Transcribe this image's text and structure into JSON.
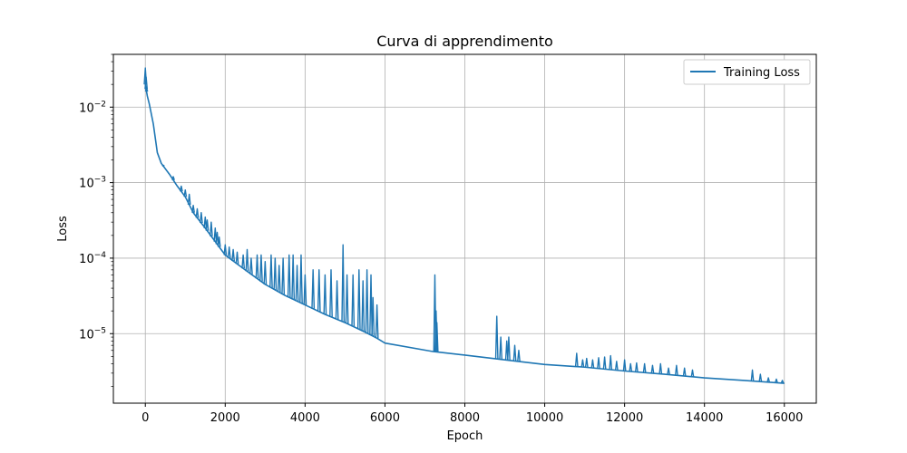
{
  "chart_data": {
    "type": "line",
    "title": "Curva di apprendimento",
    "xlabel": "Epoch",
    "ylabel": "Loss",
    "xlim": [
      -800,
      16800
    ],
    "ylim": [
      1.2e-06,
      0.05
    ],
    "yscale": "log",
    "grid": true,
    "legend_position": "upper right",
    "x_ticks": [
      "0",
      "2000",
      "4000",
      "6000",
      "8000",
      "10000",
      "12000",
      "14000",
      "16000"
    ],
    "x_tick_values": [
      0,
      2000,
      4000,
      6000,
      8000,
      10000,
      12000,
      14000,
      16000
    ],
    "y_ticks": [
      {
        "base": "10",
        "exp": "−5",
        "value": 1e-05
      },
      {
        "base": "10",
        "exp": "−4",
        "value": 0.0001
      },
      {
        "base": "10",
        "exp": "−3",
        "value": 0.001
      },
      {
        "base": "10",
        "exp": "−2",
        "value": 0.01
      }
    ],
    "series": [
      {
        "name": "Training Loss",
        "color": "#1f77b4",
        "baseline": [
          [
            0,
            0.02
          ],
          [
            50,
            0.014
          ],
          [
            100,
            0.011
          ],
          [
            200,
            0.006
          ],
          [
            300,
            0.0025
          ],
          [
            400,
            0.0018
          ],
          [
            600,
            0.0013
          ],
          [
            800,
            0.0009
          ],
          [
            1000,
            0.00065
          ],
          [
            1200,
            0.0004
          ],
          [
            1500,
            0.00025
          ],
          [
            2000,
            0.00011
          ],
          [
            2500,
            7e-05
          ],
          [
            3000,
            4.5e-05
          ],
          [
            3500,
            3.2e-05
          ],
          [
            4000,
            2.4e-05
          ],
          [
            4500,
            1.8e-05
          ],
          [
            5000,
            1.4e-05
          ],
          [
            5500,
            1.05e-05
          ],
          [
            5800,
            8.7e-06
          ],
          [
            6000,
            7.5e-06
          ],
          [
            7200,
            5.8e-06
          ],
          [
            8000,
            5.2e-06
          ],
          [
            9000,
            4.5e-06
          ],
          [
            10000,
            3.9e-06
          ],
          [
            11000,
            3.6e-06
          ],
          [
            12000,
            3.2e-06
          ],
          [
            13000,
            2.9e-06
          ],
          [
            14000,
            2.6e-06
          ],
          [
            15000,
            2.4e-06
          ],
          [
            16000,
            2.2e-06
          ]
        ],
        "spikes": [
          [
            0,
            0.033
          ],
          [
            20,
            0.025
          ],
          [
            30,
            0.018
          ],
          [
            450,
            0.0017
          ],
          [
            700,
            0.0012
          ],
          [
            900,
            0.0009
          ],
          [
            1000,
            0.0008
          ],
          [
            1100,
            0.0007
          ],
          [
            1200,
            0.0005
          ],
          [
            1300,
            0.00045
          ],
          [
            1400,
            0.0004
          ],
          [
            1500,
            0.00035
          ],
          [
            1550,
            0.00032
          ],
          [
            1650,
            0.0003
          ],
          [
            1750,
            0.00025
          ],
          [
            1800,
            0.00022
          ],
          [
            1850,
            0.00019
          ],
          [
            2000,
            0.00015
          ],
          [
            2100,
            0.00014
          ],
          [
            2200,
            0.00013
          ],
          [
            2300,
            0.00012
          ],
          [
            2450,
            0.00011
          ],
          [
            2550,
            0.00013
          ],
          [
            2650,
            0.0001
          ],
          [
            2800,
            0.00011
          ],
          [
            2900,
            0.00011
          ],
          [
            3000,
            9e-05
          ],
          [
            3150,
            0.00011
          ],
          [
            3250,
            0.0001
          ],
          [
            3350,
            8e-05
          ],
          [
            3450,
            0.0001
          ],
          [
            3600,
            0.00011
          ],
          [
            3700,
            0.00011
          ],
          [
            3800,
            8e-05
          ],
          [
            3900,
            0.00011
          ],
          [
            4000,
            6e-05
          ],
          [
            4200,
            7e-05
          ],
          [
            4350,
            7e-05
          ],
          [
            4500,
            6e-05
          ],
          [
            4650,
            7e-05
          ],
          [
            4800,
            5e-05
          ],
          [
            4950,
            0.00015
          ],
          [
            5050,
            6e-05
          ],
          [
            5200,
            6e-05
          ],
          [
            5350,
            7e-05
          ],
          [
            5450,
            5e-05
          ],
          [
            5550,
            7e-05
          ],
          [
            5650,
            6e-05
          ],
          [
            5700,
            3e-05
          ],
          [
            5800,
            2.4e-05
          ],
          [
            7250,
            6e-05
          ],
          [
            7280,
            2e-05
          ],
          [
            7300,
            1.4e-05
          ],
          [
            8800,
            1.7e-05
          ],
          [
            8900,
            9e-06
          ],
          [
            9050,
            8e-06
          ],
          [
            9100,
            9e-06
          ],
          [
            9250,
            7e-06
          ],
          [
            9350,
            6e-06
          ],
          [
            10800,
            5.5e-06
          ],
          [
            10950,
            4.5e-06
          ],
          [
            11050,
            4.7e-06
          ],
          [
            11200,
            4.5e-06
          ],
          [
            11350,
            4.8e-06
          ],
          [
            11500,
            4.9e-06
          ],
          [
            11650,
            5.1e-06
          ],
          [
            11800,
            4.3e-06
          ],
          [
            12000,
            4.5e-06
          ],
          [
            12150,
            4e-06
          ],
          [
            12300,
            4.1e-06
          ],
          [
            12500,
            4e-06
          ],
          [
            12700,
            3.8e-06
          ],
          [
            12900,
            4e-06
          ],
          [
            13100,
            3.5e-06
          ],
          [
            13300,
            3.8e-06
          ],
          [
            13500,
            3.5e-06
          ],
          [
            13700,
            3.3e-06
          ],
          [
            15200,
            3.3e-06
          ],
          [
            15400,
            2.9e-06
          ],
          [
            15600,
            2.6e-06
          ],
          [
            15800,
            2.5e-06
          ],
          [
            15950,
            2.4e-06
          ]
        ]
      }
    ]
  }
}
